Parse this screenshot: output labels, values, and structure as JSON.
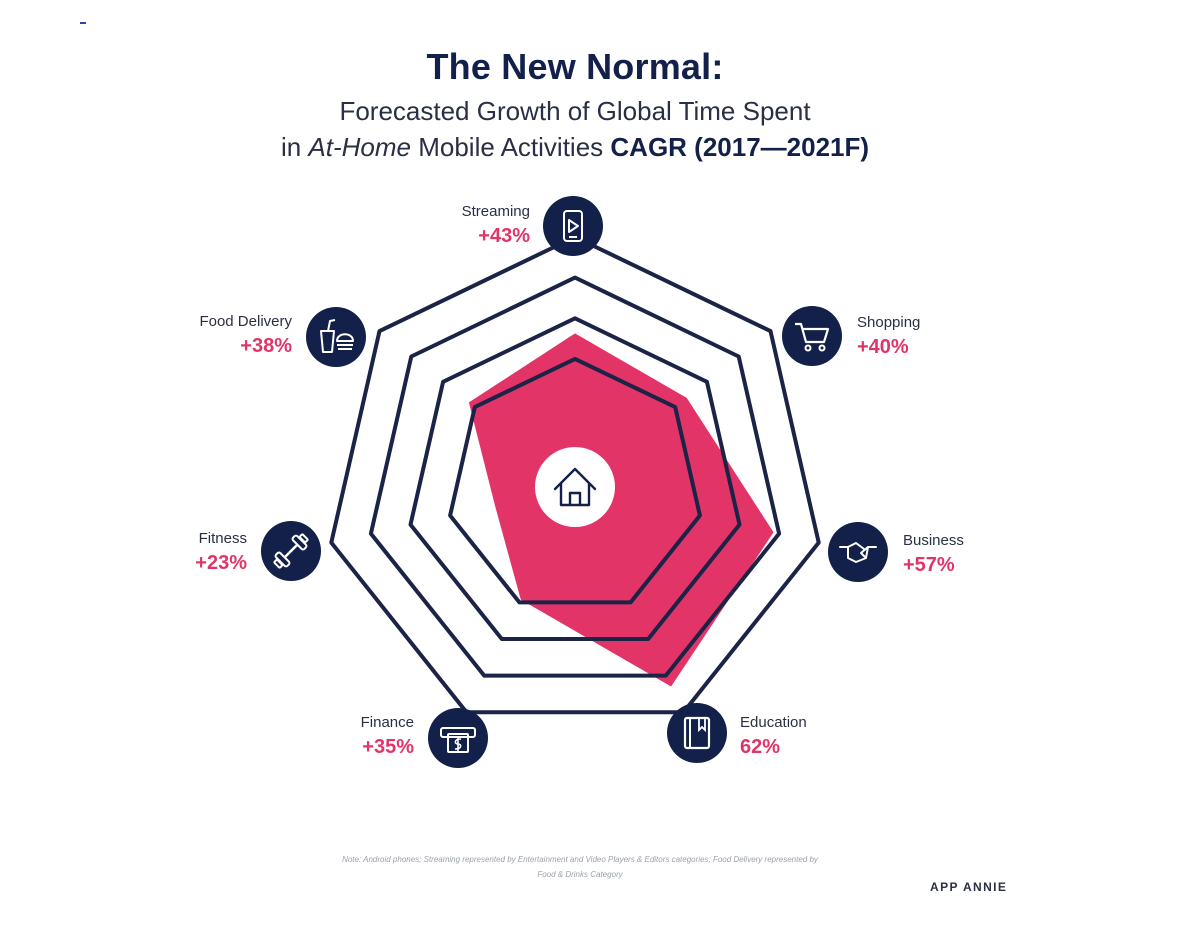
{
  "header": {
    "title": "The New Normal:",
    "subtitle_line1": "Forecasted Growth of Global Time Spent",
    "subtitle_line2_pre": "in ",
    "subtitle_line2_italic": "At-Home",
    "subtitle_line2_mid": " Mobile Activities ",
    "subtitle_line2_bold": "CAGR (2017—2021F)"
  },
  "chart_data": {
    "type": "radar",
    "title": "The New Normal:",
    "subtitle": "Forecasted Growth of Global Time Spent in At-Home Mobile Activities CAGR (2017—2021F)",
    "center_icon": "home-icon",
    "axis_max": 70,
    "rings": 4,
    "categories": [
      {
        "name": "Streaming",
        "label": "+43%",
        "value": 43,
        "icon": "video-phone-icon"
      },
      {
        "name": "Shopping",
        "label": "+40%",
        "value": 40,
        "icon": "shopping-cart-icon"
      },
      {
        "name": "Business",
        "label": "+57%",
        "value": 57,
        "icon": "handshake-icon"
      },
      {
        "name": "Education",
        "label": "62%",
        "value": 62,
        "icon": "book-icon"
      },
      {
        "name": "Finance",
        "label": "+35%",
        "value": 35,
        "icon": "atm-cash-icon"
      },
      {
        "name": "Fitness",
        "label": "+23%",
        "value": 23,
        "icon": "dumbbell-icon"
      },
      {
        "name": "Food Delivery",
        "label": "+38%",
        "value": 38,
        "icon": "food-drink-icon"
      }
    ],
    "colors": {
      "navy": "#13204a",
      "accent": "#e33468",
      "ring": "#1b2347"
    }
  },
  "footer": {
    "note": "Note: Android phones; Streaming represented by Entertainment and Video Players & Editors categories; Food Delivery represented by Food & Drinks Category",
    "brand": "APP ANNIE"
  }
}
